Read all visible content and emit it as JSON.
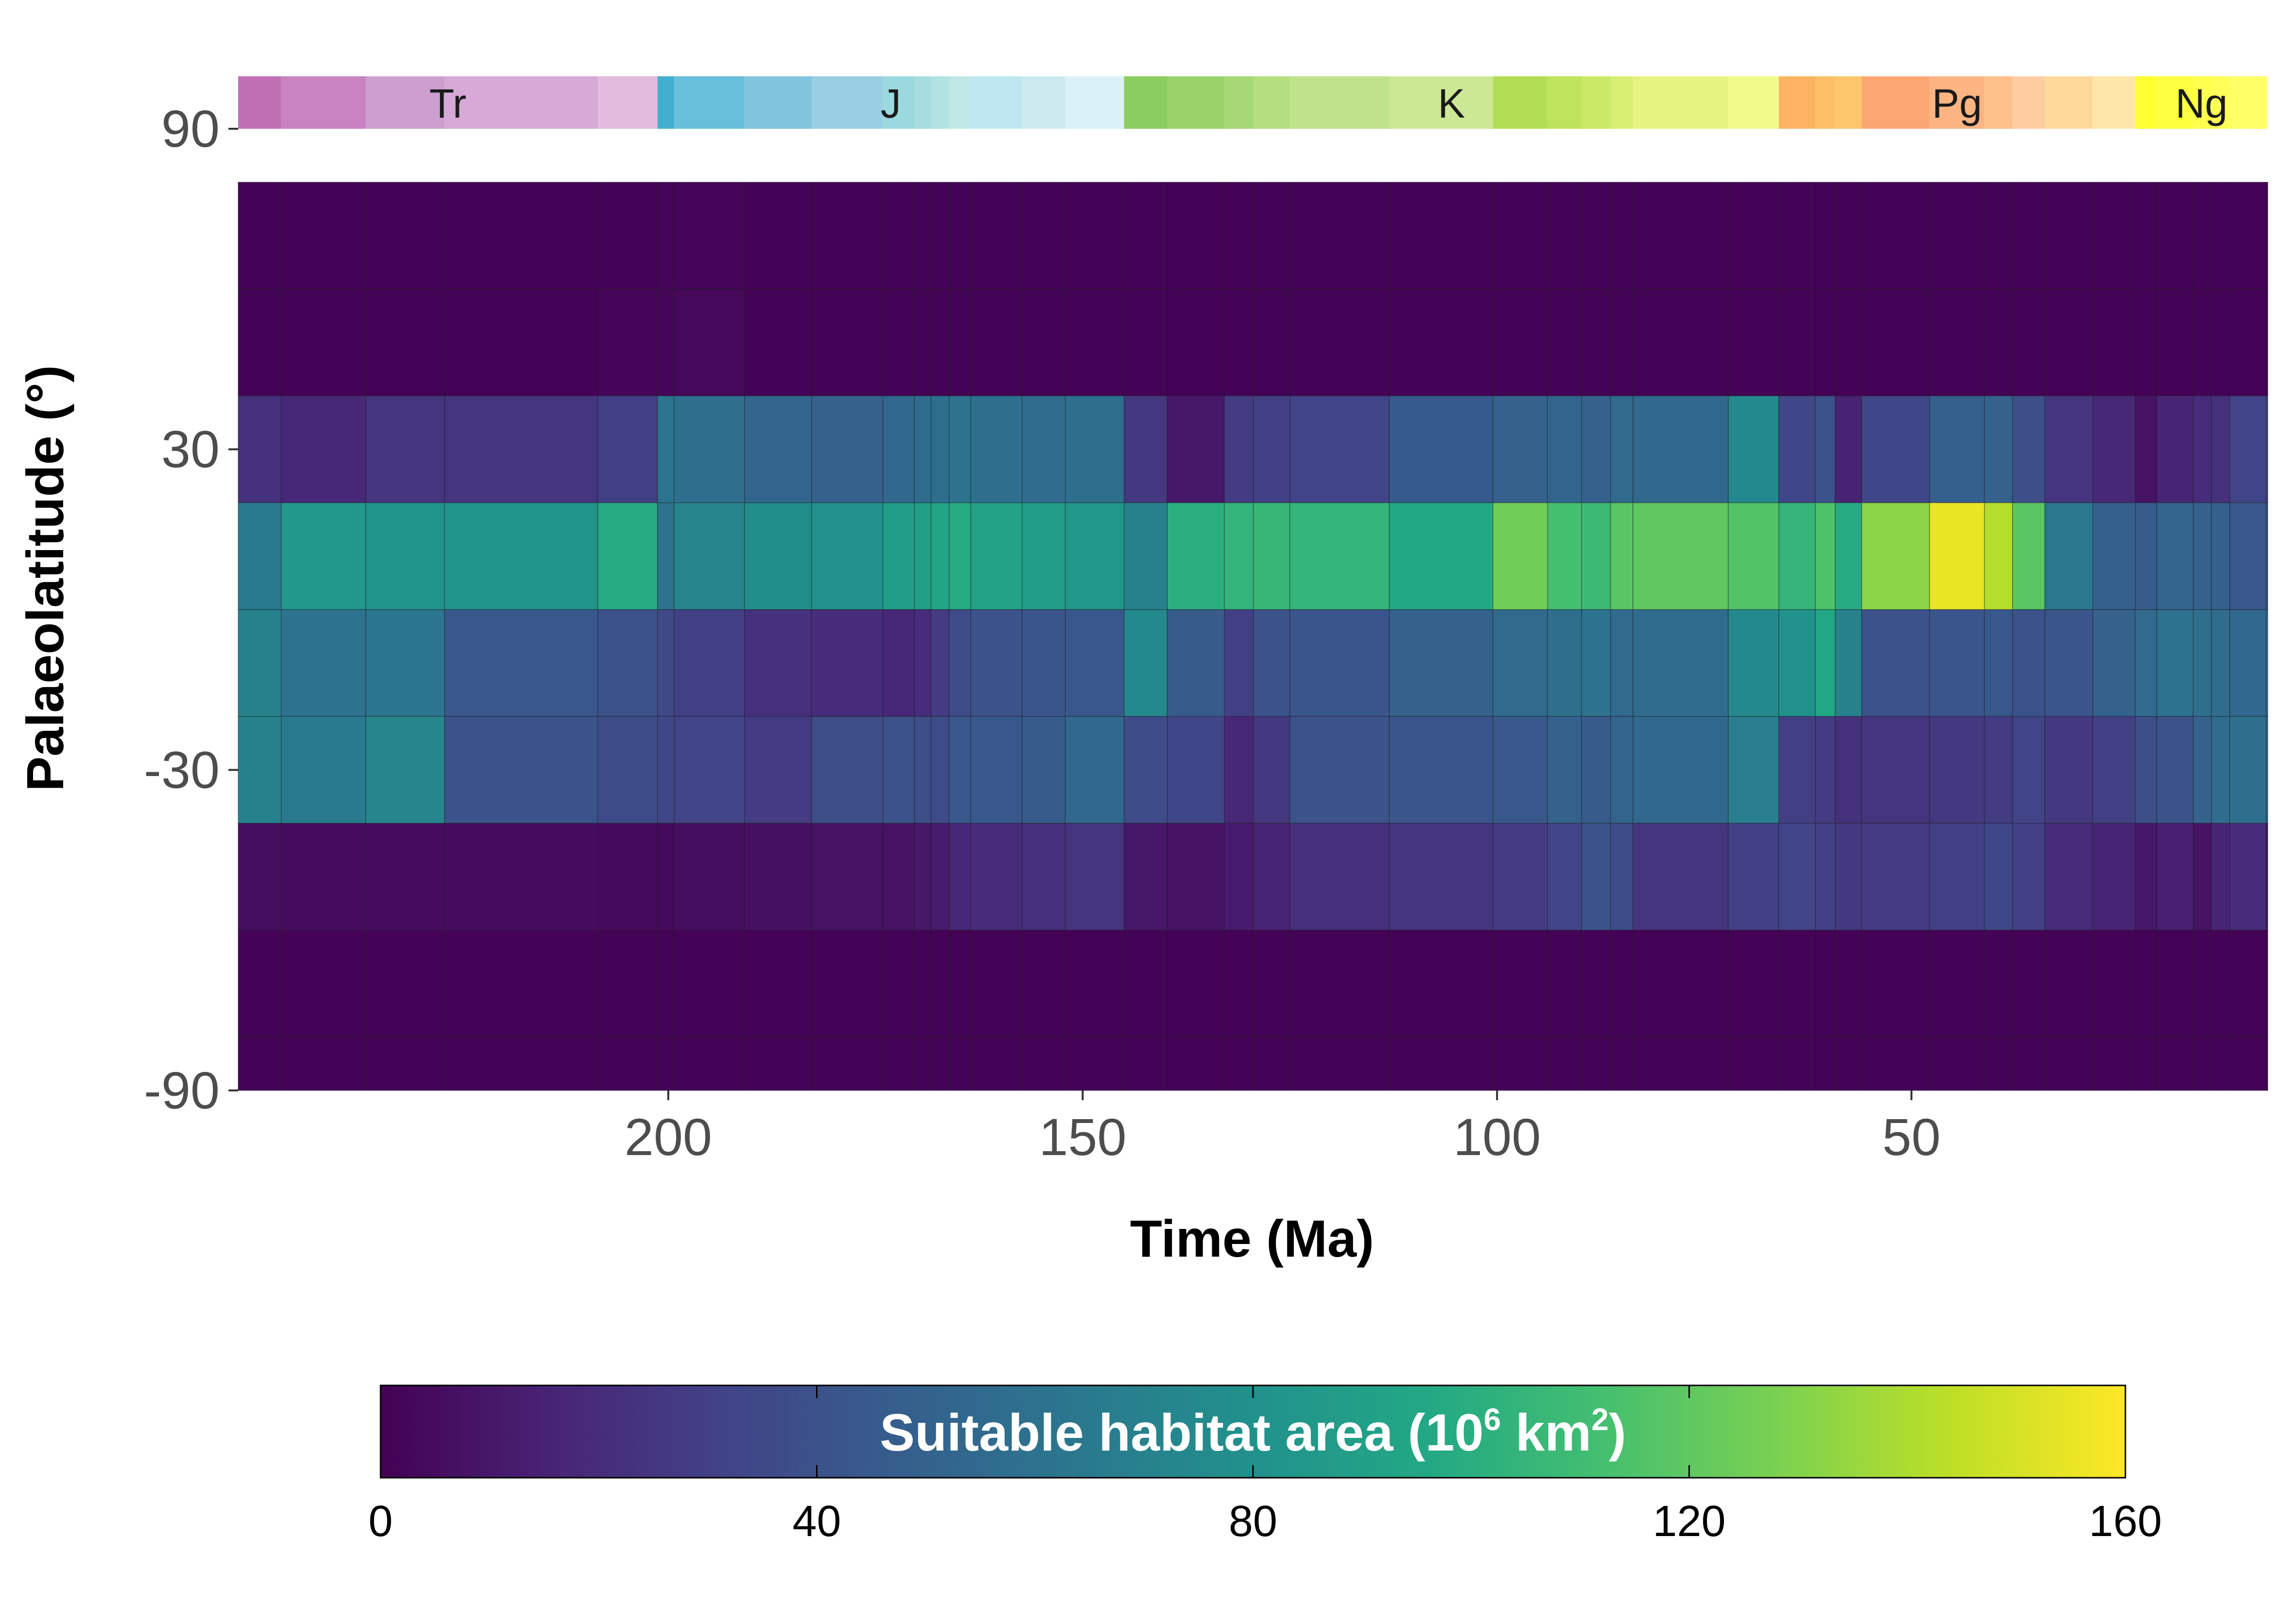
{
  "chart_data": {
    "type": "heatmap",
    "xlabel": "Time (Ma)",
    "ylabel": "Palaeolatitude (°)",
    "xlim": [
      251.9,
      7.0
    ],
    "ylim": [
      -90,
      90
    ],
    "x_ticks": [
      200,
      150,
      100,
      50
    ],
    "x_tick_labels": [
      "200",
      "150",
      "100",
      "50"
    ],
    "y_ticks": [
      90,
      30,
      -30,
      -90
    ],
    "y_tick_labels": [
      "90",
      "30",
      "-30",
      "-90"
    ],
    "lat_bins": [
      [
        60,
        80
      ],
      [
        40,
        60
      ],
      [
        20,
        40
      ],
      [
        0,
        20
      ],
      [
        -20,
        0
      ],
      [
        -40,
        -20
      ],
      [
        -60,
        -40
      ],
      [
        -80,
        -60
      ],
      [
        -90,
        -80
      ]
    ],
    "time_bins": [
      [
        251.9,
        246.7
      ],
      [
        246.7,
        236.5
      ],
      [
        236.5,
        227.0
      ],
      [
        227.0,
        208.5
      ],
      [
        208.5,
        201.3
      ],
      [
        201.3,
        199.3
      ],
      [
        199.3,
        190.8
      ],
      [
        190.8,
        182.7
      ],
      [
        182.7,
        174.1
      ],
      [
        174.1,
        170.3
      ],
      [
        170.3,
        168.3
      ],
      [
        168.3,
        166.1
      ],
      [
        166.1,
        163.5
      ],
      [
        163.5,
        157.3
      ],
      [
        157.3,
        152.1
      ],
      [
        152.1,
        145.0
      ],
      [
        145.0,
        139.8
      ],
      [
        139.8,
        132.9
      ],
      [
        132.9,
        129.4
      ],
      [
        129.4,
        125.0
      ],
      [
        125.0,
        113.0
      ],
      [
        113.0,
        100.5
      ],
      [
        100.5,
        93.9
      ],
      [
        93.9,
        89.8
      ],
      [
        89.8,
        86.3
      ],
      [
        86.3,
        83.6
      ],
      [
        83.6,
        72.1
      ],
      [
        72.1,
        66.0
      ],
      [
        66.0,
        61.6
      ],
      [
        61.6,
        59.2
      ],
      [
        59.2,
        56.0
      ],
      [
        56.0,
        47.8
      ],
      [
        47.8,
        41.2
      ],
      [
        41.2,
        37.8
      ],
      [
        37.8,
        33.9
      ],
      [
        33.9,
        28.1
      ],
      [
        28.1,
        23.0
      ],
      [
        23.0,
        20.4
      ],
      [
        20.4,
        16.0
      ],
      [
        16.0,
        13.8
      ],
      [
        13.8,
        11.6
      ],
      [
        11.6,
        7.2
      ],
      [
        7.2,
        7.0
      ]
    ],
    "values": [
      [
        1,
        1,
        1,
        1,
        1,
        2,
        2,
        1,
        1,
        1,
        1,
        1,
        1,
        1,
        1,
        1,
        1,
        1,
        1,
        1,
        1,
        1,
        1,
        1,
        1,
        1,
        1,
        1,
        1,
        1,
        1,
        1,
        1,
        1,
        1,
        1,
        1,
        1,
        1,
        1,
        1,
        1,
        1
      ],
      [
        1,
        1,
        1,
        1,
        2,
        2,
        3,
        1,
        1,
        1,
        1,
        1,
        1,
        1,
        1,
        1,
        1,
        1,
        1,
        1,
        1,
        1,
        1,
        1,
        1,
        1,
        1,
        1,
        1,
        1,
        1,
        1,
        1,
        1,
        1,
        1,
        1,
        1,
        1,
        1,
        1,
        1,
        1
      ],
      [
        22,
        18,
        24,
        24,
        30,
        62,
        58,
        52,
        50,
        54,
        56,
        58,
        60,
        58,
        56,
        58,
        26,
        10,
        28,
        30,
        32,
        45,
        50,
        52,
        50,
        55,
        54,
        75,
        34,
        40,
        15,
        34,
        48,
        50,
        38,
        24,
        18,
        8,
        16,
        20,
        22,
        32,
        30
      ],
      [
        65,
        85,
        82,
        82,
        98,
        60,
        72,
        78,
        80,
        88,
        90,
        94,
        98,
        92,
        88,
        84,
        70,
        100,
        104,
        106,
        104,
        96,
        125,
        112,
        108,
        118,
        120,
        116,
        105,
        115,
        98,
        132,
        155,
        142,
        118,
        64,
        48,
        46,
        52,
        50,
        48,
        44,
        42
      ],
      [
        70,
        60,
        62,
        44,
        40,
        35,
        30,
        22,
        20,
        18,
        20,
        28,
        36,
        40,
        42,
        44,
        75,
        46,
        30,
        40,
        42,
        50,
        55,
        58,
        60,
        55,
        56,
        75,
        80,
        95,
        70,
        40,
        42,
        44,
        40,
        42,
        50,
        55,
        60,
        58,
        56,
        54,
        54
      ],
      [
        70,
        65,
        72,
        40,
        36,
        34,
        32,
        28,
        38,
        40,
        38,
        36,
        44,
        44,
        46,
        54,
        36,
        34,
        18,
        26,
        40,
        42,
        44,
        50,
        46,
        52,
        54,
        68,
        30,
        28,
        22,
        24,
        26,
        28,
        32,
        26,
        30,
        38,
        40,
        50,
        56,
        58,
        54
      ],
      [
        6,
        5,
        5,
        5,
        4,
        4,
        6,
        7,
        8,
        8,
        10,
        12,
        18,
        20,
        22,
        24,
        10,
        8,
        12,
        16,
        22,
        24,
        28,
        32,
        40,
        36,
        24,
        30,
        32,
        30,
        26,
        28,
        30,
        34,
        30,
        20,
        16,
        10,
        14,
        8,
        16,
        20,
        10
      ],
      [
        1,
        1,
        1,
        1,
        1,
        1,
        1,
        1,
        1,
        1,
        1,
        1,
        1,
        1,
        1,
        1,
        1,
        1,
        1,
        1,
        1,
        1,
        1,
        1,
        1,
        1,
        1,
        1,
        1,
        1,
        1,
        1,
        1,
        1,
        1,
        1,
        1,
        1,
        1,
        1,
        1,
        1,
        1
      ],
      [
        1,
        1,
        1,
        1,
        1,
        1,
        1,
        1,
        1,
        1,
        1,
        1,
        1,
        1,
        1,
        1,
        1,
        1,
        1,
        1,
        1,
        1,
        1,
        1,
        1,
        1,
        1,
        1,
        1,
        1,
        1,
        1,
        1,
        1,
        1,
        1,
        1,
        1,
        1,
        1,
        1,
        1,
        1
      ]
    ],
    "colorbar": {
      "title_main": "Suitable habitat area (10",
      "title_exp1": "6",
      "title_unit": " km",
      "title_exp2": "2",
      "title_close": ")",
      "limits": [
        0,
        160
      ],
      "ticks": [
        0,
        40,
        80,
        120,
        160
      ],
      "tick_labels": [
        "0",
        "40",
        "80",
        "120",
        "160"
      ],
      "stops": [
        "#440154",
        "#482475",
        "#414487",
        "#355f8d",
        "#2a788e",
        "#21918c",
        "#22a884",
        "#44bf70",
        "#7ad151",
        "#bddf26",
        "#fde725"
      ],
      "placement": "bottom"
    },
    "timescale": {
      "periods": [
        {
          "label": "Tr",
          "start": 251.9,
          "end": 201.3
        },
        {
          "label": "J",
          "start": 201.3,
          "end": 145.0
        },
        {
          "label": "K",
          "start": 145.0,
          "end": 66.0
        },
        {
          "label": "Pg",
          "start": 66.0,
          "end": 23.0
        },
        {
          "label": "Ng",
          "start": 23.0,
          "end": 7.0
        }
      ],
      "stages": [
        {
          "start": 251.9,
          "end": 246.7,
          "color": "#c06fb4"
        },
        {
          "start": 246.7,
          "end": 236.5,
          "color": "#c983c2"
        },
        {
          "start": 236.5,
          "end": 227.0,
          "color": "#cc9fcf"
        },
        {
          "start": 227.0,
          "end": 208.5,
          "color": "#d6a9d6"
        },
        {
          "start": 208.5,
          "end": 201.3,
          "color": "#e3bbdd"
        },
        {
          "start": 201.3,
          "end": 199.3,
          "color": "#42aed0"
        },
        {
          "start": 199.3,
          "end": 190.8,
          "color": "#67bfd9"
        },
        {
          "start": 190.8,
          "end": 182.7,
          "color": "#80c5dd"
        },
        {
          "start": 182.7,
          "end": 174.1,
          "color": "#99cee3"
        },
        {
          "start": 174.1,
          "end": 170.3,
          "color": "#9ad9dd"
        },
        {
          "start": 170.3,
          "end": 168.3,
          "color": "#a6dde0"
        },
        {
          "start": 168.3,
          "end": 166.1,
          "color": "#b3e2e3"
        },
        {
          "start": 166.1,
          "end": 163.5,
          "color": "#bfe7e5"
        },
        {
          "start": 163.5,
          "end": 157.3,
          "color": "#bfe7f1"
        },
        {
          "start": 157.3,
          "end": 152.1,
          "color": "#cceaf0"
        },
        {
          "start": 152.1,
          "end": 145.0,
          "color": "#d9f1f7"
        },
        {
          "start": 145.0,
          "end": 139.8,
          "color": "#8ccd60"
        },
        {
          "start": 139.8,
          "end": 132.9,
          "color": "#99d36a"
        },
        {
          "start": 132.9,
          "end": 129.4,
          "color": "#a6d975"
        },
        {
          "start": 129.4,
          "end": 125.0,
          "color": "#b3df7f"
        },
        {
          "start": 125.0,
          "end": 113.0,
          "color": "#bfe38a"
        },
        {
          "start": 113.0,
          "end": 100.5,
          "color": "#cce895"
        },
        {
          "start": 100.5,
          "end": 93.9,
          "color": "#b3de53"
        },
        {
          "start": 93.9,
          "end": 89.8,
          "color": "#bfe35d"
        },
        {
          "start": 89.8,
          "end": 86.3,
          "color": "#cce867"
        },
        {
          "start": 86.3,
          "end": 83.6,
          "color": "#d9ef74"
        },
        {
          "start": 83.6,
          "end": 72.1,
          "color": "#e6f47f"
        },
        {
          "start": 72.1,
          "end": 66.0,
          "color": "#f2fa8c"
        },
        {
          "start": 66.0,
          "end": 61.6,
          "color": "#fdb462"
        },
        {
          "start": 61.6,
          "end": 59.2,
          "color": "#febf65"
        },
        {
          "start": 59.2,
          "end": 56.0,
          "color": "#fdc66c"
        },
        {
          "start": 56.0,
          "end": 47.8,
          "color": "#fca773"
        },
        {
          "start": 47.8,
          "end": 41.2,
          "color": "#fcb482"
        },
        {
          "start": 41.2,
          "end": 37.8,
          "color": "#fdc08a"
        },
        {
          "start": 37.8,
          "end": 33.9,
          "color": "#fdcda1"
        },
        {
          "start": 33.9,
          "end": 28.1,
          "color": "#fed99a"
        },
        {
          "start": 28.1,
          "end": 23.0,
          "color": "#fee6aa"
        },
        {
          "start": 23.0,
          "end": 20.4,
          "color": "#ffff33"
        },
        {
          "start": 20.4,
          "end": 16.0,
          "color": "#ffff41"
        },
        {
          "start": 16.0,
          "end": 13.8,
          "color": "#ffff4d"
        },
        {
          "start": 13.8,
          "end": 11.6,
          "color": "#ffff59"
        },
        {
          "start": 11.6,
          "end": 7.2,
          "color": "#ffff66"
        },
        {
          "start": 7.2,
          "end": 7.0,
          "color": "#ffff99"
        }
      ]
    }
  }
}
